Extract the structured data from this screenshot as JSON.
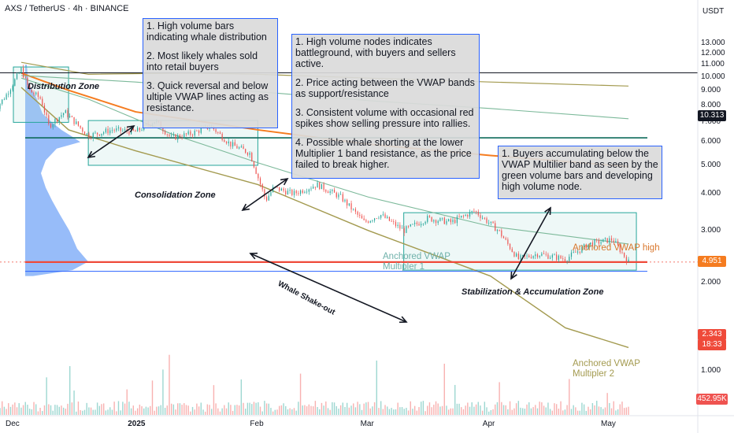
{
  "header": {
    "symbol": "AXS / TetherUS · 4h · BINANCE",
    "currency": "USDT"
  },
  "colors": {
    "candle_up": "#26a69a",
    "candle_down": "#ef5350",
    "vwap": "#f57c20",
    "band1": "#7cb99a",
    "band2": "#a39a4f",
    "support": "#0f6b5c",
    "box_border": "#2962ff",
    "current": "#ef4a3a"
  },
  "notes": {
    "box1": [
      "1. High volume bars indicating whale distribution",
      "2. Most likely whales sold into retail buyers",
      "3. Quick reversal and below ultiple VWAP lines acting as resistance."
    ],
    "box2": [
      "1. High volume nodes indicates battleground, with buyers and sellers active.",
      "2. Price acting between the VWAP bands as support/resistance",
      "3. Consistent volume with occasional red spikes show selling pressure into rallies.",
      "4. Possible whale shorting at the lower Multiplier 1 band resistance, as the price failed to break higher."
    ],
    "box3": [
      "1. Buyers accumulating below the VWAP Multilier band as seen by the green volume bars and developing high volume node."
    ]
  },
  "zones": {
    "distribution": "Distribution Zone",
    "consolidation": "Consolidation Zone",
    "accumulation": "Stabilization & Accumulation Zone",
    "shakeout": "Whale Shake-out"
  },
  "band_labels": {
    "vwap_high": "Anchored VWAP high",
    "mult1": [
      "Anchored VWAP",
      "Multipler 1"
    ],
    "mult2": [
      "Anchored VWAP",
      "Multipler 2"
    ]
  },
  "price_tags": {
    "resistance": "10.313",
    "vwap": "4.951",
    "last": "2.343",
    "countdown": "18:33",
    "volume": "452.95K"
  },
  "chart_data": [
    {
      "type": "candlestick",
      "title": "AXS / TetherUS · 4h · BINANCE",
      "yscale": "log",
      "ylim": [
        0.55,
        16
      ],
      "y_ticks": [
        13.0,
        12.0,
        11.0,
        10.0,
        9.0,
        8.0,
        7.0,
        6.0,
        5.0,
        4.0,
        3.0,
        2.0,
        1.0
      ],
      "y_tick_labels": [
        "13.000",
        "12.000",
        "11.000",
        "10.000",
        "9.000",
        "8.000",
        "7.000",
        "6.000",
        "5.000",
        "4.000",
        "3.000",
        "2.000",
        "1.000"
      ],
      "x_tick_labels": [
        "Dec",
        "2025",
        "Feb",
        "Mar",
        "Apr",
        "May"
      ],
      "x_tick_dates": [
        "2024-12-01",
        "2025-01-01",
        "2025-02-01",
        "2025-03-01",
        "2025-04-01",
        "2025-05-01"
      ],
      "x_range": [
        "2024-11-26",
        "2025-05-08"
      ],
      "price_path": [
        [
          "2024-11-26",
          7.6
        ],
        [
          "2024-11-29",
          8.6
        ],
        [
          "2024-12-03",
          10.6
        ],
        [
          "2024-12-05",
          9.0
        ],
        [
          "2024-12-08",
          8.4
        ],
        [
          "2024-12-10",
          6.8
        ],
        [
          "2024-12-14",
          7.6
        ],
        [
          "2024-12-20",
          6.3
        ],
        [
          "2024-12-26",
          6.6
        ],
        [
          "2025-01-01",
          6.5
        ],
        [
          "2025-01-06",
          7.1
        ],
        [
          "2025-01-10",
          6.2
        ],
        [
          "2025-01-15",
          6.4
        ],
        [
          "2025-01-20",
          6.8
        ],
        [
          "2025-01-25",
          5.9
        ],
        [
          "2025-01-30",
          5.5
        ],
        [
          "2025-02-03",
          3.8
        ],
        [
          "2025-02-05",
          4.2
        ],
        [
          "2025-02-10",
          4.0
        ],
        [
          "2025-02-16",
          4.3
        ],
        [
          "2025-02-22",
          3.9
        ],
        [
          "2025-02-28",
          3.2
        ],
        [
          "2025-03-04",
          3.4
        ],
        [
          "2025-03-10",
          3.0
        ],
        [
          "2025-03-16",
          3.3
        ],
        [
          "2025-03-22",
          3.2
        ],
        [
          "2025-03-28",
          3.5
        ],
        [
          "2025-04-03",
          3.0
        ],
        [
          "2025-04-08",
          2.4
        ],
        [
          "2025-04-13",
          2.5
        ],
        [
          "2025-04-20",
          2.4
        ],
        [
          "2025-04-26",
          2.7
        ],
        [
          "2025-05-02",
          2.8
        ],
        [
          "2025-05-06",
          2.343
        ]
      ],
      "series": [
        {
          "name": "Anchored VWAP high",
          "points": [
            [
              "2024-12-03",
              10.3
            ],
            [
              "2024-12-15",
              9.0
            ],
            [
              "2025-01-01",
              7.6
            ],
            [
              "2025-02-01",
              6.6
            ],
            [
              "2025-03-01",
              5.9
            ],
            [
              "2025-04-01",
              5.4
            ],
            [
              "2025-05-06",
              4.951
            ]
          ]
        },
        {
          "name": "Anchored VWAP Multipler 1",
          "points": [
            [
              "2024-12-03",
              9.9
            ],
            [
              "2024-12-20",
              8.4
            ],
            [
              "2025-01-10",
              6.4
            ],
            [
              "2025-02-01",
              5.1
            ],
            [
              "2025-03-01",
              3.9
            ],
            [
              "2025-04-01",
              3.1
            ],
            [
              "2025-05-06",
              2.7
            ]
          ]
        },
        {
          "name": "Anchored VWAP Multipler 2",
          "points": [
            [
              "2024-12-03",
              9.2
            ],
            [
              "2024-12-15",
              6.6
            ],
            [
              "2025-01-01",
              5.6
            ],
            [
              "2025-02-01",
              4.3
            ],
            [
              "2025-03-01",
              3.0
            ],
            [
              "2025-04-01",
              2.1
            ],
            [
              "2025-04-20",
              1.4
            ],
            [
              "2025-05-06",
              1.2
            ]
          ]
        },
        {
          "name": "Upper band 1",
          "points": [
            [
              "2024-12-03",
              10.1
            ],
            [
              "2025-01-01",
              9.6
            ],
            [
              "2025-02-01",
              8.9
            ],
            [
              "2025-03-01",
              8.3
            ],
            [
              "2025-04-01",
              7.8
            ],
            [
              "2025-05-06",
              7.2
            ]
          ]
        },
        {
          "name": "Upper band 2",
          "points": [
            [
              "2024-12-03",
              11.2
            ],
            [
              "2024-12-20",
              10.2
            ],
            [
              "2025-01-15",
              10.3
            ],
            [
              "2025-02-01",
              10.2
            ],
            [
              "2025-03-01",
              9.9
            ],
            [
              "2025-04-01",
              9.6
            ],
            [
              "2025-05-06",
              9.3
            ]
          ]
        }
      ],
      "horizontal_levels": [
        {
          "name": "Resistance 10.313",
          "value": 10.313
        },
        {
          "name": "Support",
          "value": 6.2
        },
        {
          "name": "Last price",
          "value": 2.343
        }
      ],
      "last_price": 2.343,
      "current_volume": "452.95K"
    }
  ]
}
